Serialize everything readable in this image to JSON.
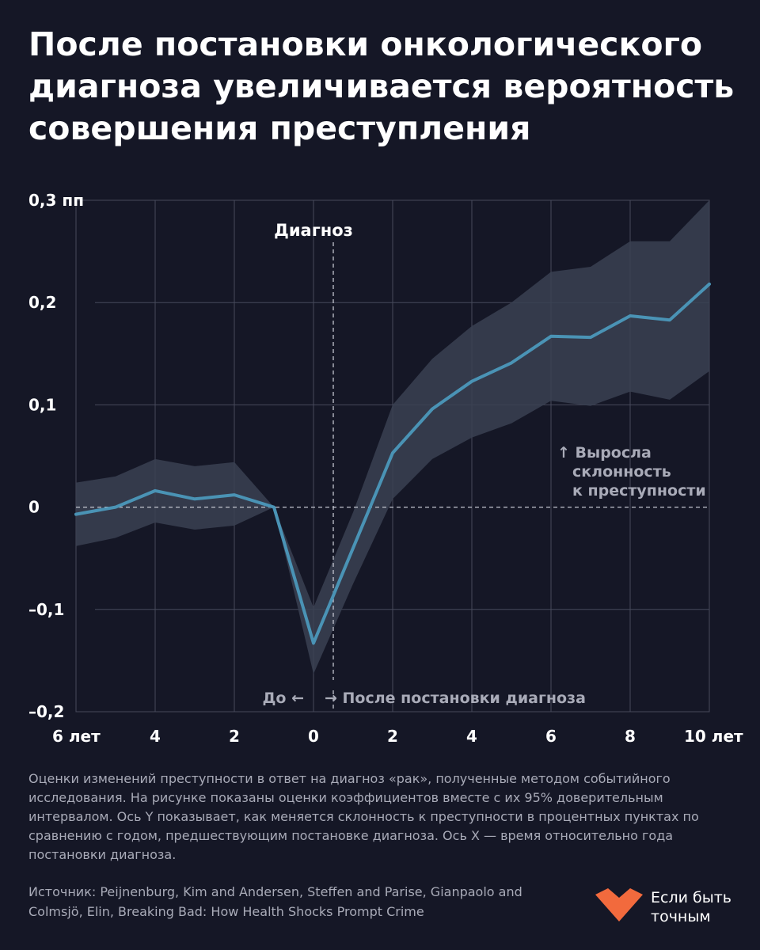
{
  "title": "После постановки онкологического диагноза увеличивается вероятность совершения преступления",
  "chart_data": {
    "type": "line",
    "x": [
      -7,
      -6,
      -5,
      -4,
      -3,
      -2,
      -1,
      0,
      1,
      2,
      3,
      4,
      5,
      6,
      7,
      8,
      9,
      10
    ],
    "series": [
      {
        "values": [
          -0.007,
          0.0,
          0.016,
          0.008,
          0.012,
          0.0,
          -0.133,
          -0.04,
          0.053,
          0.096,
          0.123,
          0.141,
          0.167,
          0.166,
          0.187,
          0.183,
          0.218,
          null
        ],
        "lower": [
          -0.038,
          -0.03,
          -0.015,
          -0.022,
          -0.018,
          0.0,
          -0.163,
          -0.075,
          0.008,
          0.047,
          0.068,
          0.082,
          0.104,
          0.099,
          0.113,
          0.105,
          0.133,
          null
        ],
        "upper": [
          0.024,
          0.03,
          0.047,
          0.04,
          0.044,
          0.0,
          -0.098,
          -0.005,
          0.1,
          0.145,
          0.177,
          0.2,
          0.23,
          0.235,
          0.26,
          0.26,
          0.3,
          null
        ]
      }
    ],
    "xlim": [
      -7,
      9
    ],
    "ylim": [
      -0.2,
      0.3
    ],
    "yticks": [
      {
        "value": 0.3,
        "label": "0,3 пп"
      },
      {
        "value": 0.2,
        "label": "0,2"
      },
      {
        "value": 0.1,
        "label": "0,1"
      },
      {
        "value": 0,
        "label": "0"
      },
      {
        "value": -0.1,
        "label": "–0,1"
      },
      {
        "value": -0.2,
        "label": "–0,2"
      }
    ],
    "xticks": [
      {
        "value": -7,
        "label": "6 лет"
      },
      {
        "value": -5,
        "label": "4"
      },
      {
        "value": -3,
        "label": "2"
      },
      {
        "value": -1,
        "label": "0"
      },
      {
        "value": 1,
        "label": "2"
      },
      {
        "value": 3,
        "label": "4"
      },
      {
        "value": 5,
        "label": "6"
      },
      {
        "value": 7,
        "label": "8"
      },
      {
        "value": 9,
        "label": "10 лет"
      }
    ],
    "diagnosis_x": -0.5,
    "grid": true,
    "annotations": {
      "diagnosis": "Диагноз",
      "before": "До ←",
      "after": "→ После постановки диагноза",
      "increase": [
        "↑ Выросла",
        "склонность",
        "к преступности"
      ]
    },
    "colors": {
      "line": "#4a93b5",
      "band": "#3a4152",
      "grid": "#474a5b",
      "zero": "#c4c6d0",
      "background": "#151726"
    }
  },
  "caption": "Оценки изменений преступности в ответ на диагноз «рак», полученные методом событийного исследования. На рисунке показаны оценки коэффициентов вместе с их 95% доверительным интервалом. Ось Y показывает, как меняется склонность к преступности в процентных пунктах по сравнению с годом, предшествующим постановке диагноза. Ось X — время относительно года постановки диагноза.",
  "source": "Источник: Peijnenburg, Kim and Andersen, Steffen and Parise, Gianpaolo and Colmsjö, Elin, Breaking Bad: How Health Shocks Prompt Crime",
  "logo": {
    "text": "Если быть точным",
    "color": "#f26a3d"
  }
}
